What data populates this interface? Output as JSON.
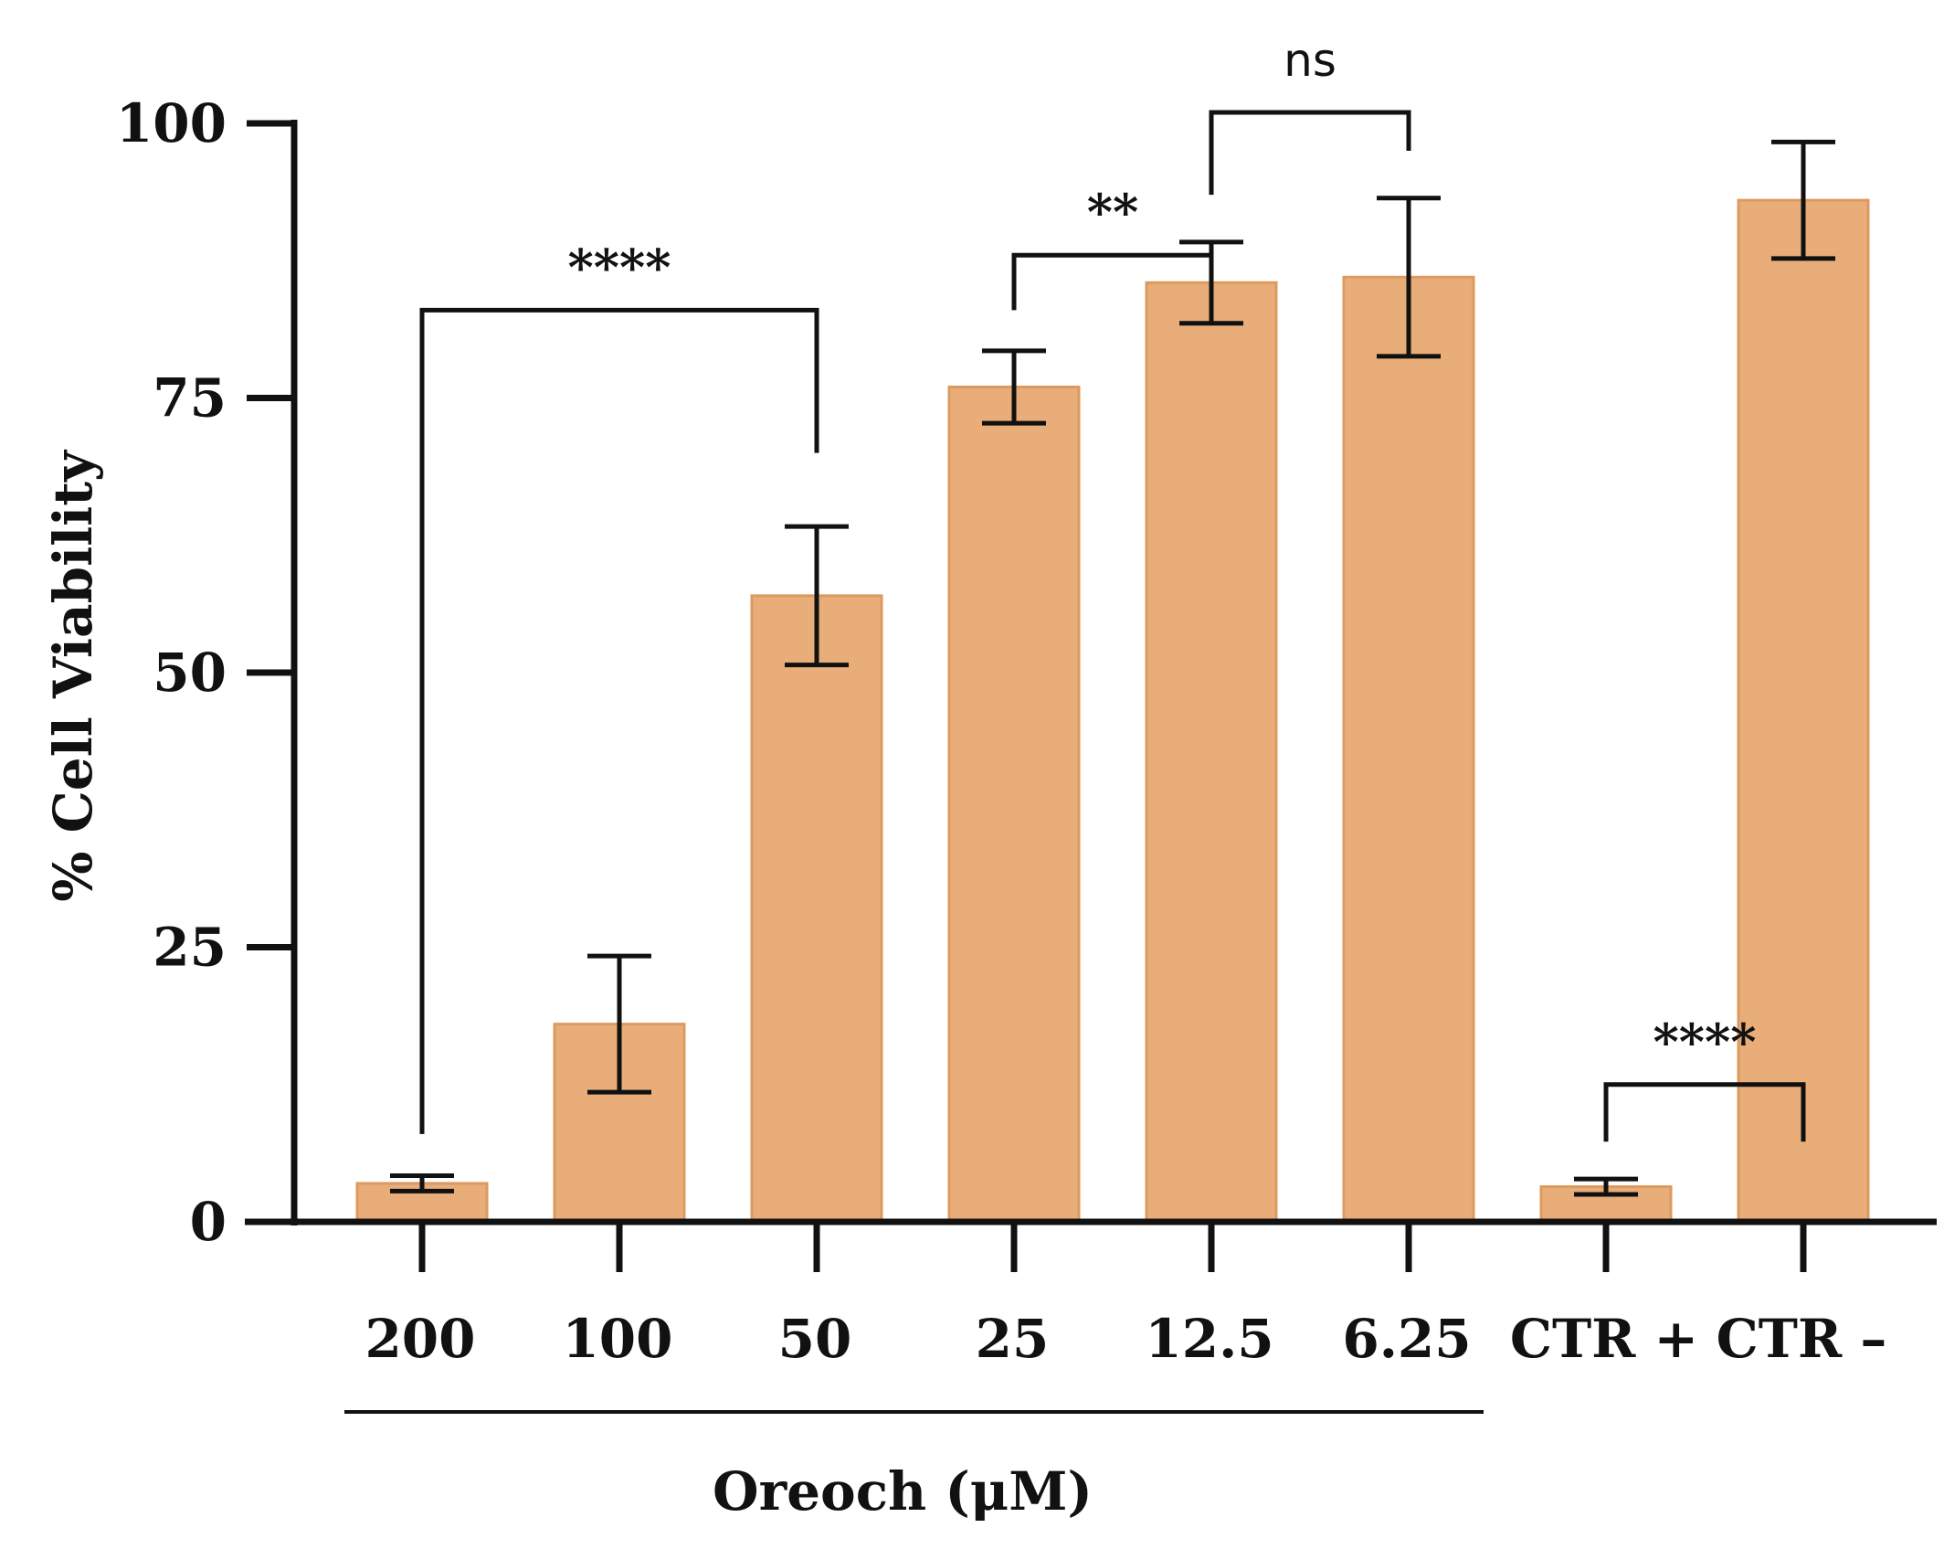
{
  "chart_data": {
    "type": "bar",
    "title": "",
    "xlabel": "Oreoch (μM)",
    "ylabel": "% Cell Viability",
    "ylim": [
      0,
      100
    ],
    "yticks": [
      0,
      25,
      50,
      75,
      100
    ],
    "categories": [
      "200",
      "100",
      "50",
      "25",
      "12.5",
      "6.25",
      "CTR +",
      "CTR –"
    ],
    "values": [
      3.5,
      18,
      57,
      76,
      85.5,
      86,
      3.2,
      93
    ],
    "errors": [
      0.7,
      6.2,
      6.3,
      3.3,
      3.7,
      7.2,
      0.7,
      5.3
    ],
    "group": {
      "label": "Oreoch (μM)",
      "from_index": 0,
      "to_index": 5
    },
    "significance": [
      {
        "label": "****",
        "from_index": 0,
        "to_index": 2,
        "bracket_y": 83,
        "left_y": 8,
        "right_y": 70
      },
      {
        "label": "**",
        "from_index": 3,
        "to_index": 4,
        "bracket_y": 88,
        "left_y": 83,
        "right_y": 83
      },
      {
        "label": "ns",
        "from_index": 4,
        "to_index": 5,
        "bracket_y": 101,
        "left_y": 93.5,
        "right_y": 97.5
      },
      {
        "label": "****",
        "from_index": 6,
        "to_index": 7,
        "bracket_y": 12.5,
        "left_y": 7.3,
        "right_y": 7.3
      }
    ],
    "colors": {
      "bar": "#e8ad78",
      "bar_edge": "#dd9a5e",
      "axis": "#111111"
    }
  }
}
